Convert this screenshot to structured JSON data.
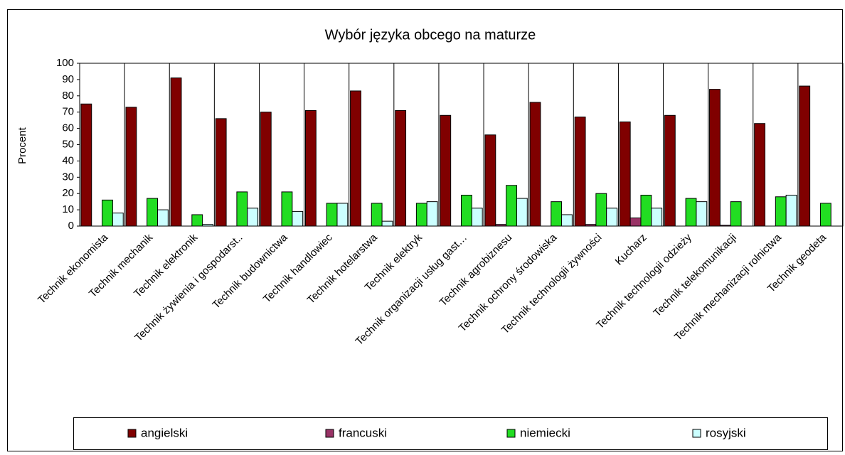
{
  "chart_data": {
    "type": "bar",
    "title": "Wybór języka obcego na maturze",
    "y_label": "Procent",
    "categories": [
      "Technik ekonomista",
      "Technik mechanik",
      "Technik elektronik",
      "Technik żywienia i gospodarst..",
      "Technik budownictwa",
      "Technik handlowiec",
      "Technik hotelarstwa",
      "Technik elektryk",
      "Technik organizacji usług gast…",
      "Technik agrobiznesu",
      "Technik ochrony środowiska",
      "Technik technologii żywności",
      "Kucharz",
      "Technik technologii odzieży",
      "Technik telekomunikacji",
      "Technik mechanizacji rolnictwa",
      "Technik geodeta"
    ],
    "series": [
      {
        "name": "angielski",
        "color": "#800000",
        "values": [
          75,
          73,
          91,
          66,
          70,
          71,
          83,
          71,
          68,
          56,
          76,
          67,
          64,
          68,
          84,
          63,
          86
        ]
      },
      {
        "name": "francuski",
        "color": "#993366",
        "values": [
          0,
          0,
          0,
          0,
          0,
          0,
          0,
          0,
          0,
          1,
          0,
          1,
          5,
          0,
          0.5,
          0,
          0
        ]
      },
      {
        "name": "niemiecki",
        "color": "#22dd22",
        "values": [
          16,
          17,
          7,
          21,
          21,
          14,
          14,
          14,
          19,
          25,
          15,
          20,
          19,
          17,
          15,
          18,
          14
        ]
      },
      {
        "name": "rosyjski",
        "color": "#ccffff",
        "values": [
          8,
          10,
          1,
          11,
          9,
          14,
          3,
          15,
          11,
          17,
          7,
          11,
          11,
          15,
          0,
          19,
          0
        ]
      }
    ],
    "ylim": [
      0,
      100
    ],
    "yticks": [
      0,
      10,
      20,
      30,
      40,
      50,
      60,
      70,
      80,
      90,
      100
    ],
    "grid": false,
    "legend": "bottom"
  }
}
